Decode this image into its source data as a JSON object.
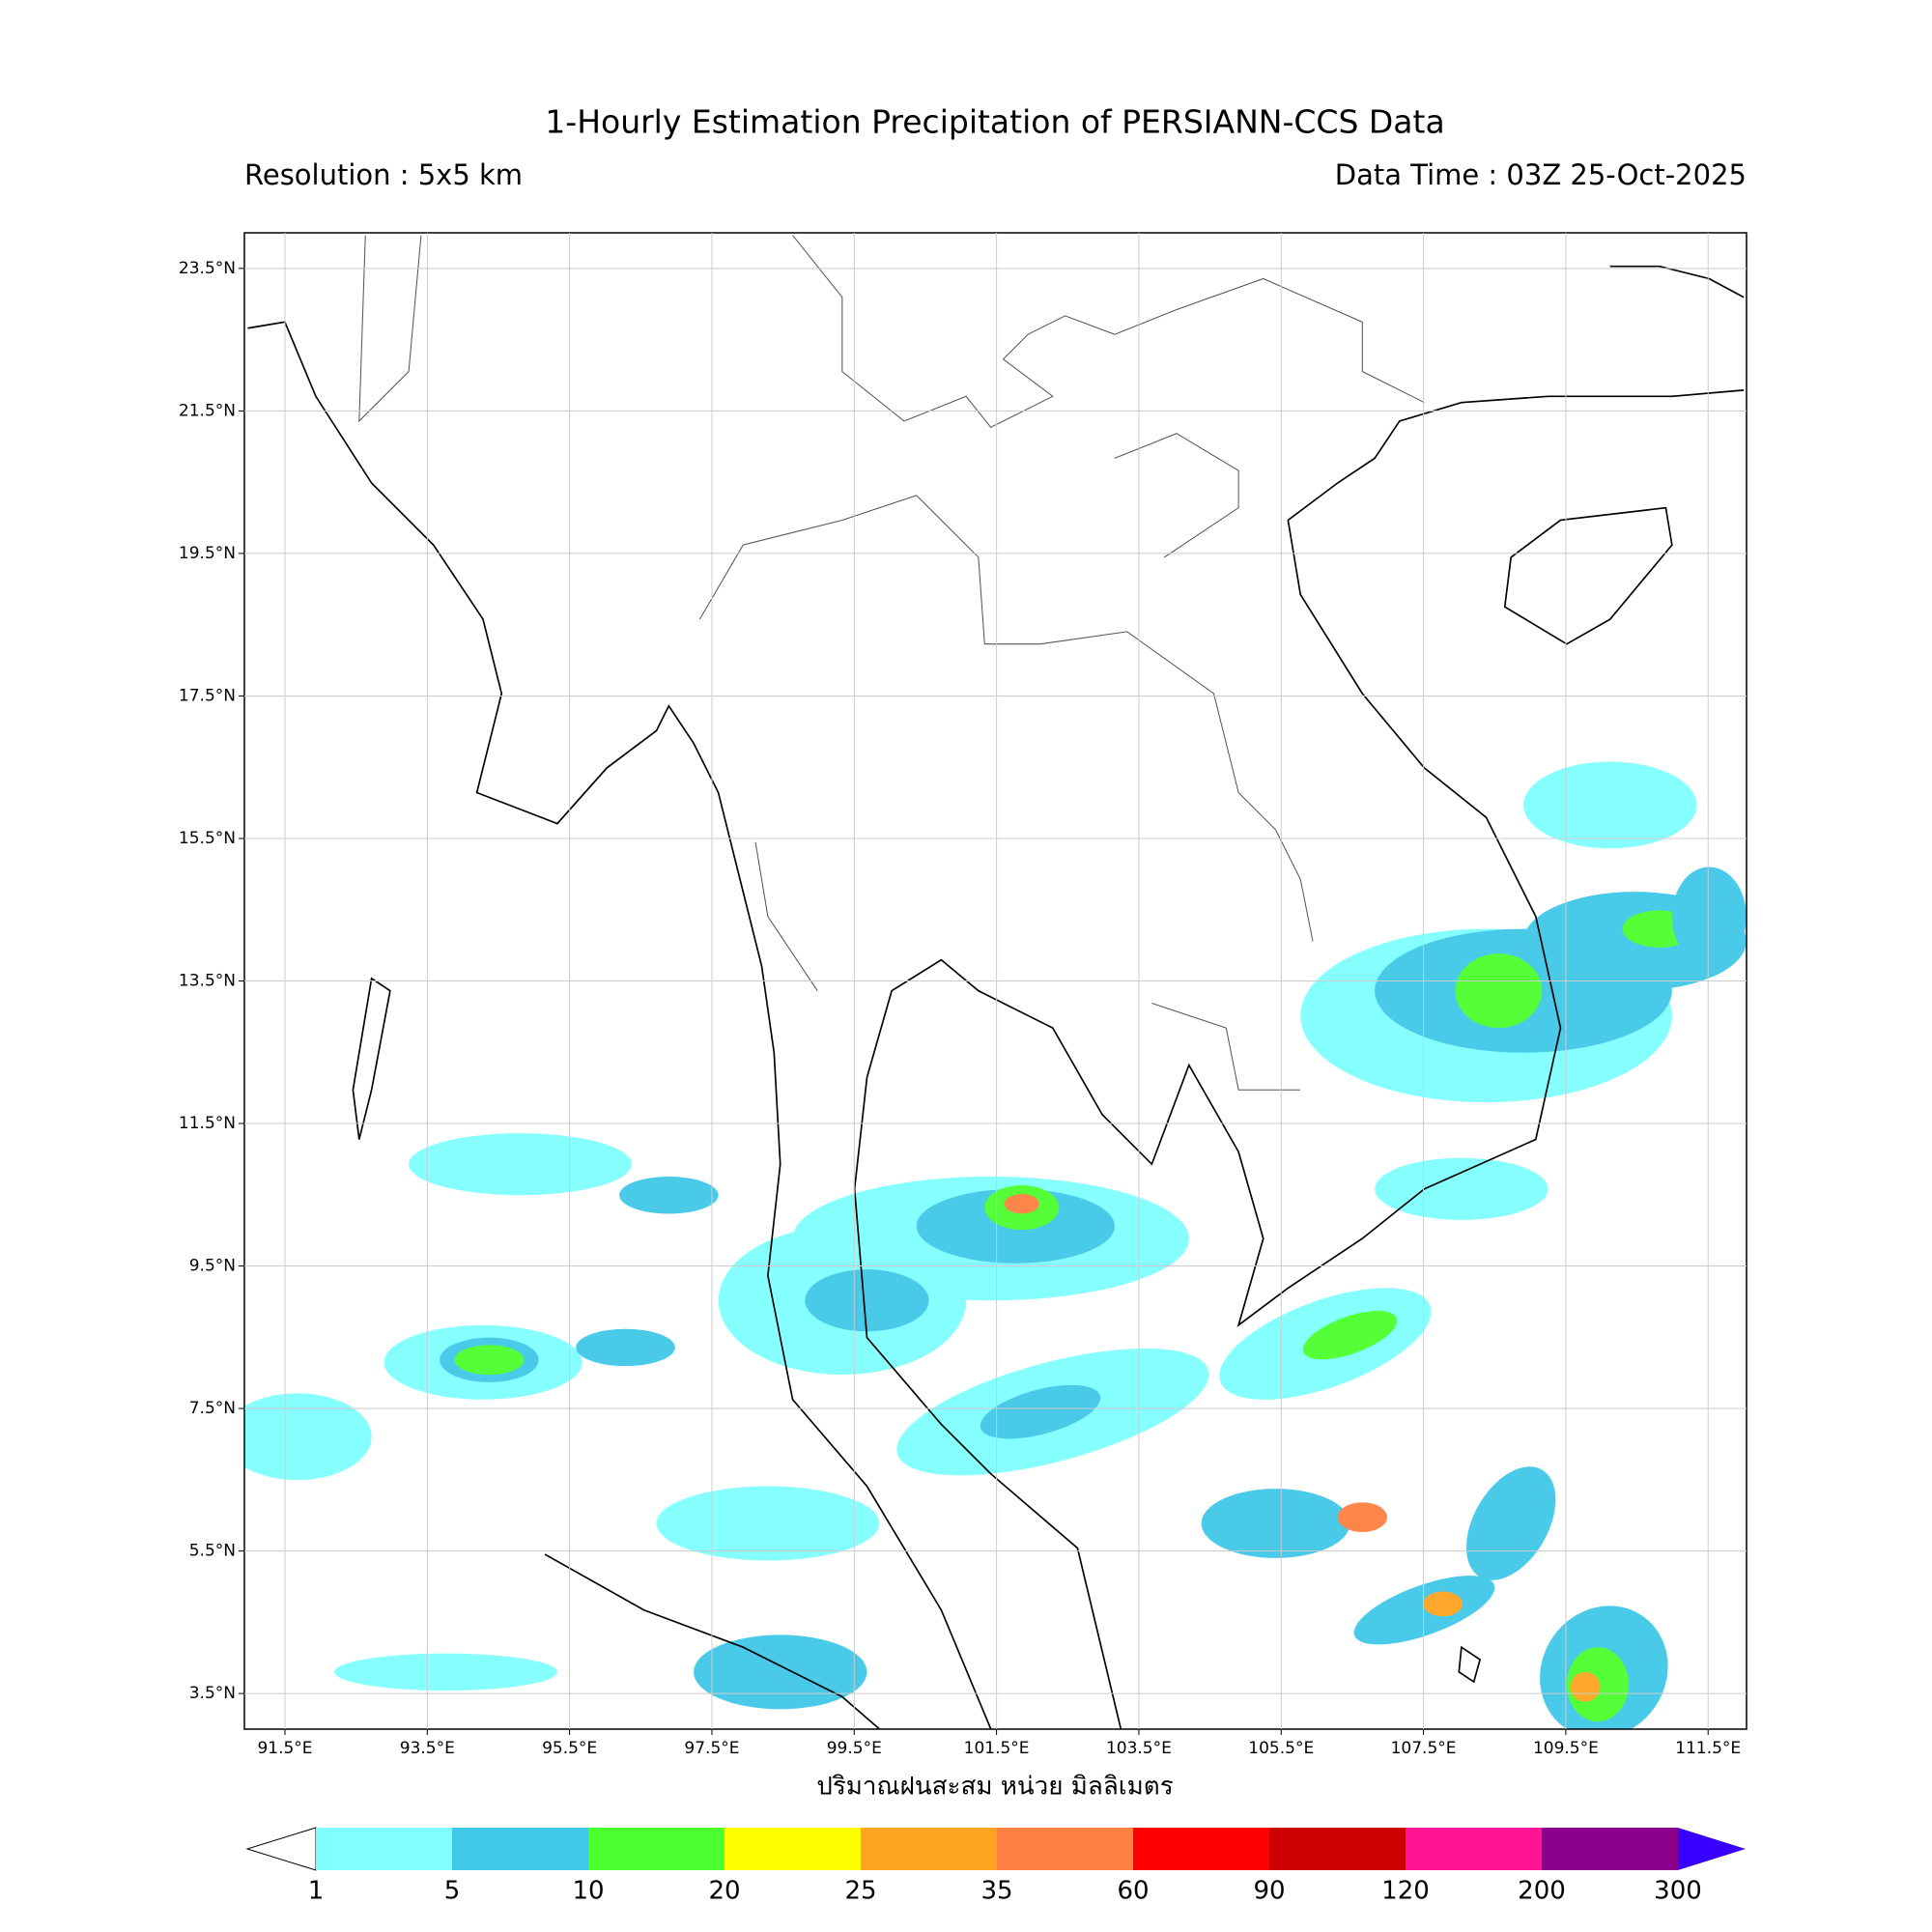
{
  "chart_data": {
    "type": "map",
    "title": "1-Hourly Estimation Precipitation of PERSIANN-CCS Data",
    "subtitle_left": "Resolution : 5x5 km",
    "subtitle_right": "Data Time : 03Z 25-Oct-2025",
    "x_label": "ปริมาณฝนสะสม หน่วย มิลลิเมตร",
    "xlim": [
      90.93,
      112.04
    ],
    "ylim": [
      3.0,
      24.0
    ],
    "grid": true,
    "xticks": [
      {
        "value": 91.5,
        "label": "91.5°E"
      },
      {
        "value": 93.5,
        "label": "93.5°E"
      },
      {
        "value": 95.5,
        "label": "95.5°E"
      },
      {
        "value": 97.5,
        "label": "97.5°E"
      },
      {
        "value": 99.5,
        "label": "99.5°E"
      },
      {
        "value": 101.5,
        "label": "101.5°E"
      },
      {
        "value": 103.5,
        "label": "103.5°E"
      },
      {
        "value": 105.5,
        "label": "105.5°E"
      },
      {
        "value": 107.5,
        "label": "107.5°E"
      },
      {
        "value": 109.5,
        "label": "109.5°E"
      },
      {
        "value": 111.5,
        "label": "111.5°E"
      }
    ],
    "yticks": [
      {
        "value": 3.5,
        "label": "3.5°N"
      },
      {
        "value": 5.5,
        "label": "5.5°N"
      },
      {
        "value": 7.5,
        "label": "7.5°N"
      },
      {
        "value": 9.5,
        "label": "9.5°N"
      },
      {
        "value": 11.5,
        "label": "11.5°N"
      },
      {
        "value": 13.5,
        "label": "13.5°N"
      },
      {
        "value": 15.5,
        "label": "15.5°N"
      },
      {
        "value": 17.5,
        "label": "17.5°N"
      },
      {
        "value": 19.5,
        "label": "19.5°N"
      },
      {
        "value": 21.5,
        "label": "21.5°N"
      },
      {
        "value": 23.5,
        "label": "23.5°N"
      }
    ],
    "colorbar": {
      "levels": [
        1,
        5,
        10,
        20,
        25,
        35,
        60,
        90,
        120,
        200,
        300
      ],
      "colors": [
        "#80ffff",
        "#40c8e8",
        "#4cff2e",
        "#ffff00",
        "#ffa420",
        "#ff8040",
        "#ff0000",
        "#cc0000",
        "#ff1493",
        "#8b008b"
      ],
      "under_color": "#ffffff",
      "over_color": "#3a00ff"
    }
  }
}
